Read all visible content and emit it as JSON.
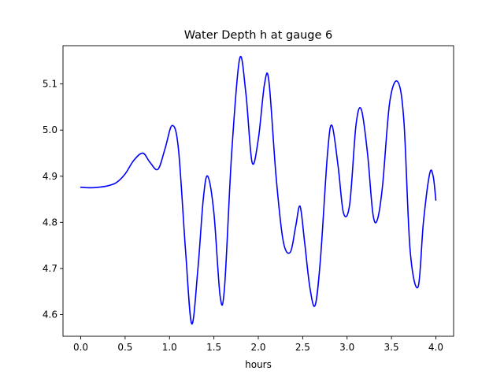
{
  "chart_data": {
    "type": "line",
    "title": "Water Depth h at gauge 6",
    "xlabel": "hours",
    "ylabel": "",
    "xlim": [
      -0.2,
      4.2
    ],
    "ylim": [
      4.553,
      5.183
    ],
    "xticks": [
      0.0,
      0.5,
      1.0,
      1.5,
      2.0,
      2.5,
      3.0,
      3.5,
      4.0
    ],
    "xtick_labels": [
      "0.0",
      "0.5",
      "1.0",
      "1.5",
      "2.0",
      "2.5",
      "3.0",
      "3.5",
      "4.0"
    ],
    "yticks": [
      4.6,
      4.7,
      4.8,
      4.9,
      5.0,
      5.1
    ],
    "ytick_labels": [
      "4.6",
      "4.7",
      "4.8",
      "4.9",
      "5.0",
      "5.1"
    ],
    "grid": false,
    "series": [
      {
        "name": "",
        "color": "#0000ff",
        "x": [
          0.0,
          0.1,
          0.2,
          0.3,
          0.4,
          0.5,
          0.6,
          0.7,
          0.78,
          0.87,
          0.95,
          1.03,
          1.1,
          1.18,
          1.25,
          1.32,
          1.38,
          1.43,
          1.5,
          1.57,
          1.62,
          1.7,
          1.79,
          1.86,
          1.93,
          2.0,
          2.07,
          2.12,
          2.2,
          2.28,
          2.36,
          2.42,
          2.47,
          2.52,
          2.58,
          2.64,
          2.7,
          2.78,
          2.83,
          2.9,
          2.96,
          3.03,
          3.1,
          3.16,
          3.23,
          3.29,
          3.34,
          3.4,
          3.48,
          3.57,
          3.64,
          3.71,
          3.8,
          3.86,
          3.93,
          3.97,
          4.0
        ],
        "y": [
          4.876,
          4.875,
          4.876,
          4.879,
          4.886,
          4.905,
          4.935,
          4.95,
          4.93,
          4.915,
          4.96,
          5.01,
          4.96,
          4.74,
          4.58,
          4.7,
          4.85,
          4.9,
          4.82,
          4.64,
          4.66,
          4.95,
          5.155,
          5.08,
          4.93,
          4.98,
          5.1,
          5.105,
          4.9,
          4.76,
          4.735,
          4.79,
          4.835,
          4.76,
          4.66,
          4.62,
          4.72,
          4.95,
          5.01,
          4.92,
          4.82,
          4.84,
          5.01,
          5.045,
          4.95,
          4.82,
          4.805,
          4.88,
          5.06,
          5.105,
          5.02,
          4.74,
          4.66,
          4.8,
          4.905,
          4.9,
          4.848
        ]
      }
    ]
  }
}
